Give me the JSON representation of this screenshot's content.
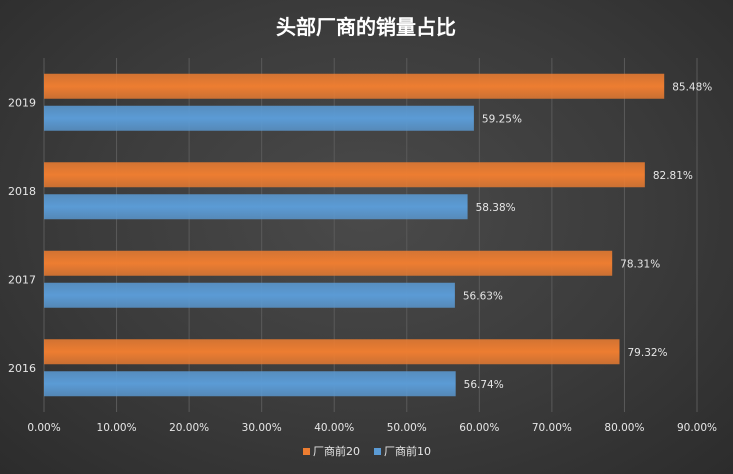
{
  "chart_data": {
    "type": "bar",
    "orientation": "horizontal",
    "title": "头部厂商的销量占比",
    "categories": [
      "2019",
      "2018",
      "2017",
      "2016"
    ],
    "series": [
      {
        "name": "厂商前20",
        "color": "#ed7d31",
        "values": [
          85.48,
          82.81,
          78.31,
          79.32
        ],
        "labels": [
          "85.48%",
          "82.81%",
          "78.31%",
          "79.32%"
        ]
      },
      {
        "name": "厂商前10",
        "color": "#5b9bd5",
        "values": [
          59.25,
          58.38,
          56.63,
          56.74
        ],
        "labels": [
          "59.25%",
          "58.38%",
          "56.63%",
          "56.74%"
        ]
      }
    ],
    "xlim": [
      0,
      90
    ],
    "xticks": [
      "0.00%",
      "10.00%",
      "20.00%",
      "30.00%",
      "40.00%",
      "50.00%",
      "60.00%",
      "70.00%",
      "80.00%",
      "90.00%"
    ],
    "grid": true,
    "legend_position": "bottom"
  },
  "colors": {
    "background": "#3a3a3a",
    "text": "#e6e6e6",
    "grid": "#5a5a5a"
  }
}
